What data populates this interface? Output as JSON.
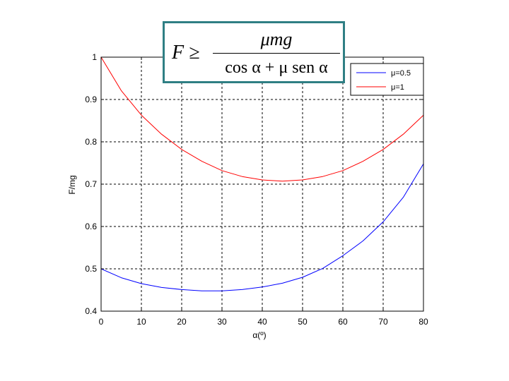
{
  "formula": {
    "lhs": "F ≥",
    "numerator": "μmg",
    "denominator": "cos α + μ sen α"
  },
  "chart_data": {
    "type": "line",
    "title": "",
    "xlabel": "α(º)",
    "ylabel": "F/mg",
    "xlim": [
      0,
      80
    ],
    "ylim": [
      0.4,
      1
    ],
    "xticks": [
      "0",
      "10",
      "20",
      "30",
      "40",
      "50",
      "60",
      "70",
      "80"
    ],
    "yticks": [
      "0.4",
      "0.5",
      "0.6",
      "0.7",
      "0.8",
      "0.9",
      "1"
    ],
    "grid": true,
    "legend_position": "top-right",
    "x": [
      0,
      5,
      10,
      15,
      20,
      25,
      30,
      35,
      40,
      45,
      50,
      55,
      60,
      65,
      70,
      75,
      80
    ],
    "series": [
      {
        "name": "μ=0.5",
        "color": "#0000ff",
        "values": [
          0.5,
          0.479,
          0.465,
          0.456,
          0.451,
          0.448,
          0.448,
          0.451,
          0.457,
          0.466,
          0.48,
          0.501,
          0.531,
          0.566,
          0.611,
          0.669,
          0.748
        ]
      },
      {
        "name": "μ=1",
        "color": "#ff0000",
        "values": [
          1.0,
          0.921,
          0.863,
          0.818,
          0.782,
          0.754,
          0.732,
          0.718,
          0.71,
          0.707,
          0.71,
          0.718,
          0.732,
          0.754,
          0.782,
          0.818,
          0.863
        ]
      }
    ]
  }
}
